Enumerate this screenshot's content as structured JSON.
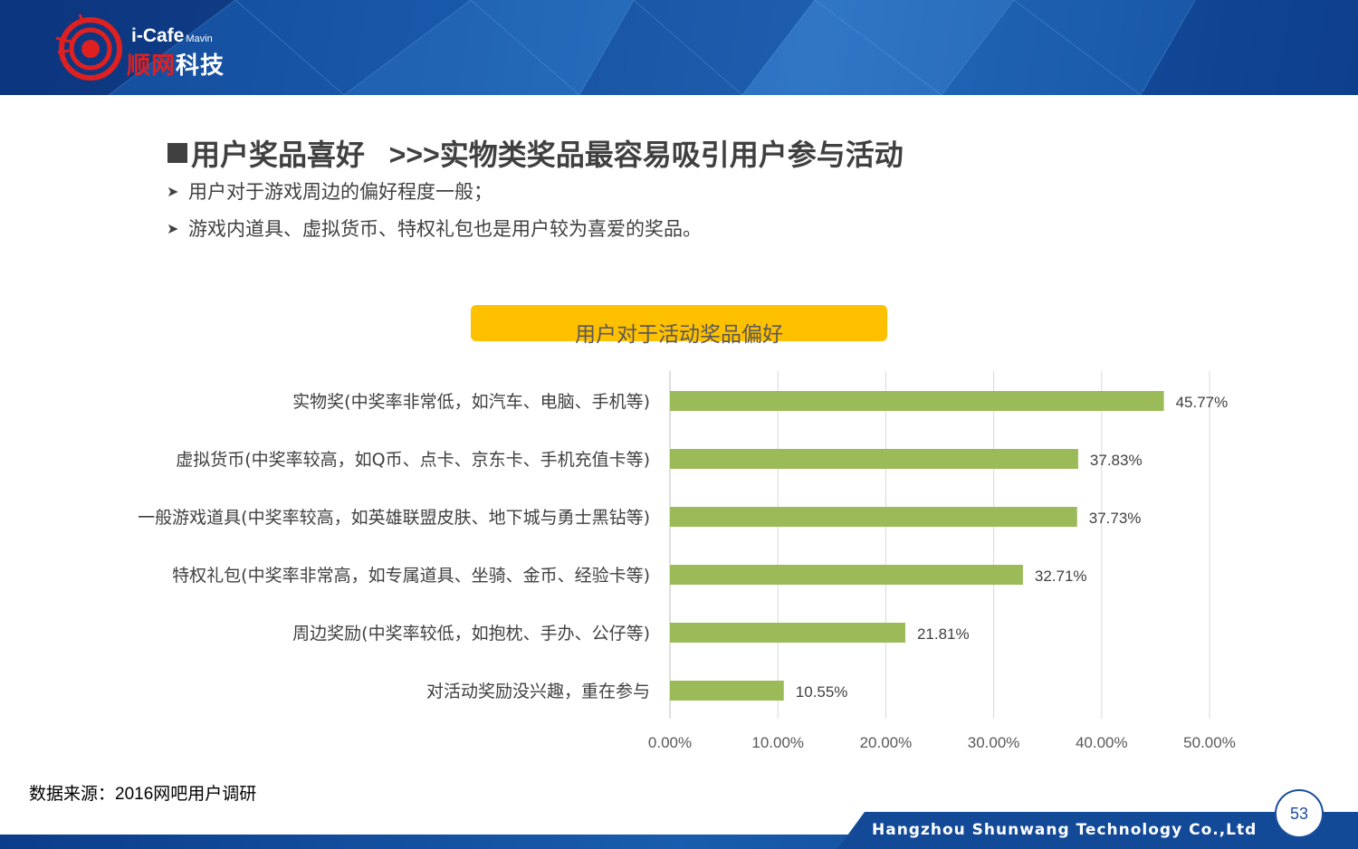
{
  "brand": {
    "logo_top": "i-Cafe",
    "logo_sub": "Mavin",
    "logo_cn_red": "顺网",
    "logo_cn_white": "科技"
  },
  "section": {
    "title": "用户奖品喜好   >>>实物类奖品最容易吸引用户参与活动",
    "bullets": [
      "用户对于游戏周边的偏好程度一般；",
      "游戏内道具、虚拟货币、特权礼包也是用户较为喜爱的奖品。"
    ]
  },
  "chart_data": {
    "type": "bar",
    "orientation": "horizontal",
    "title": "用户对于活动奖品偏好",
    "categories": [
      "实物奖(中奖率非常低，如汽车、电脑、手机等)",
      "虚拟货币(中奖率较高，如Q币、点卡、京东卡、手机充值卡等)",
      "一般游戏道具(中奖率较高，如英雄联盟皮肤、地下城与勇士黑钻等)",
      "特权礼包(中奖率非常高，如专属道具、坐骑、金币、经验卡等)",
      "周边奖励(中奖率较低，如抱枕、手办、公仔等)",
      "对活动奖励没兴趣，重在参与"
    ],
    "values": [
      45.77,
      37.83,
      37.73,
      32.71,
      21.81,
      10.55
    ],
    "value_labels": [
      "45.77%",
      "37.83%",
      "37.73%",
      "32.71%",
      "21.81%",
      "10.55%"
    ],
    "xlim": [
      0,
      50
    ],
    "xticks": [
      "0.00%",
      "10.00%",
      "20.00%",
      "30.00%",
      "40.00%",
      "50.00%"
    ],
    "bar_color": "#9bbb59",
    "grid": true
  },
  "source": "数据来源：2016网吧用户调研",
  "footer": {
    "company": "Hangzhou Shunwang Technology Co.,Ltd",
    "page_number": "53"
  }
}
